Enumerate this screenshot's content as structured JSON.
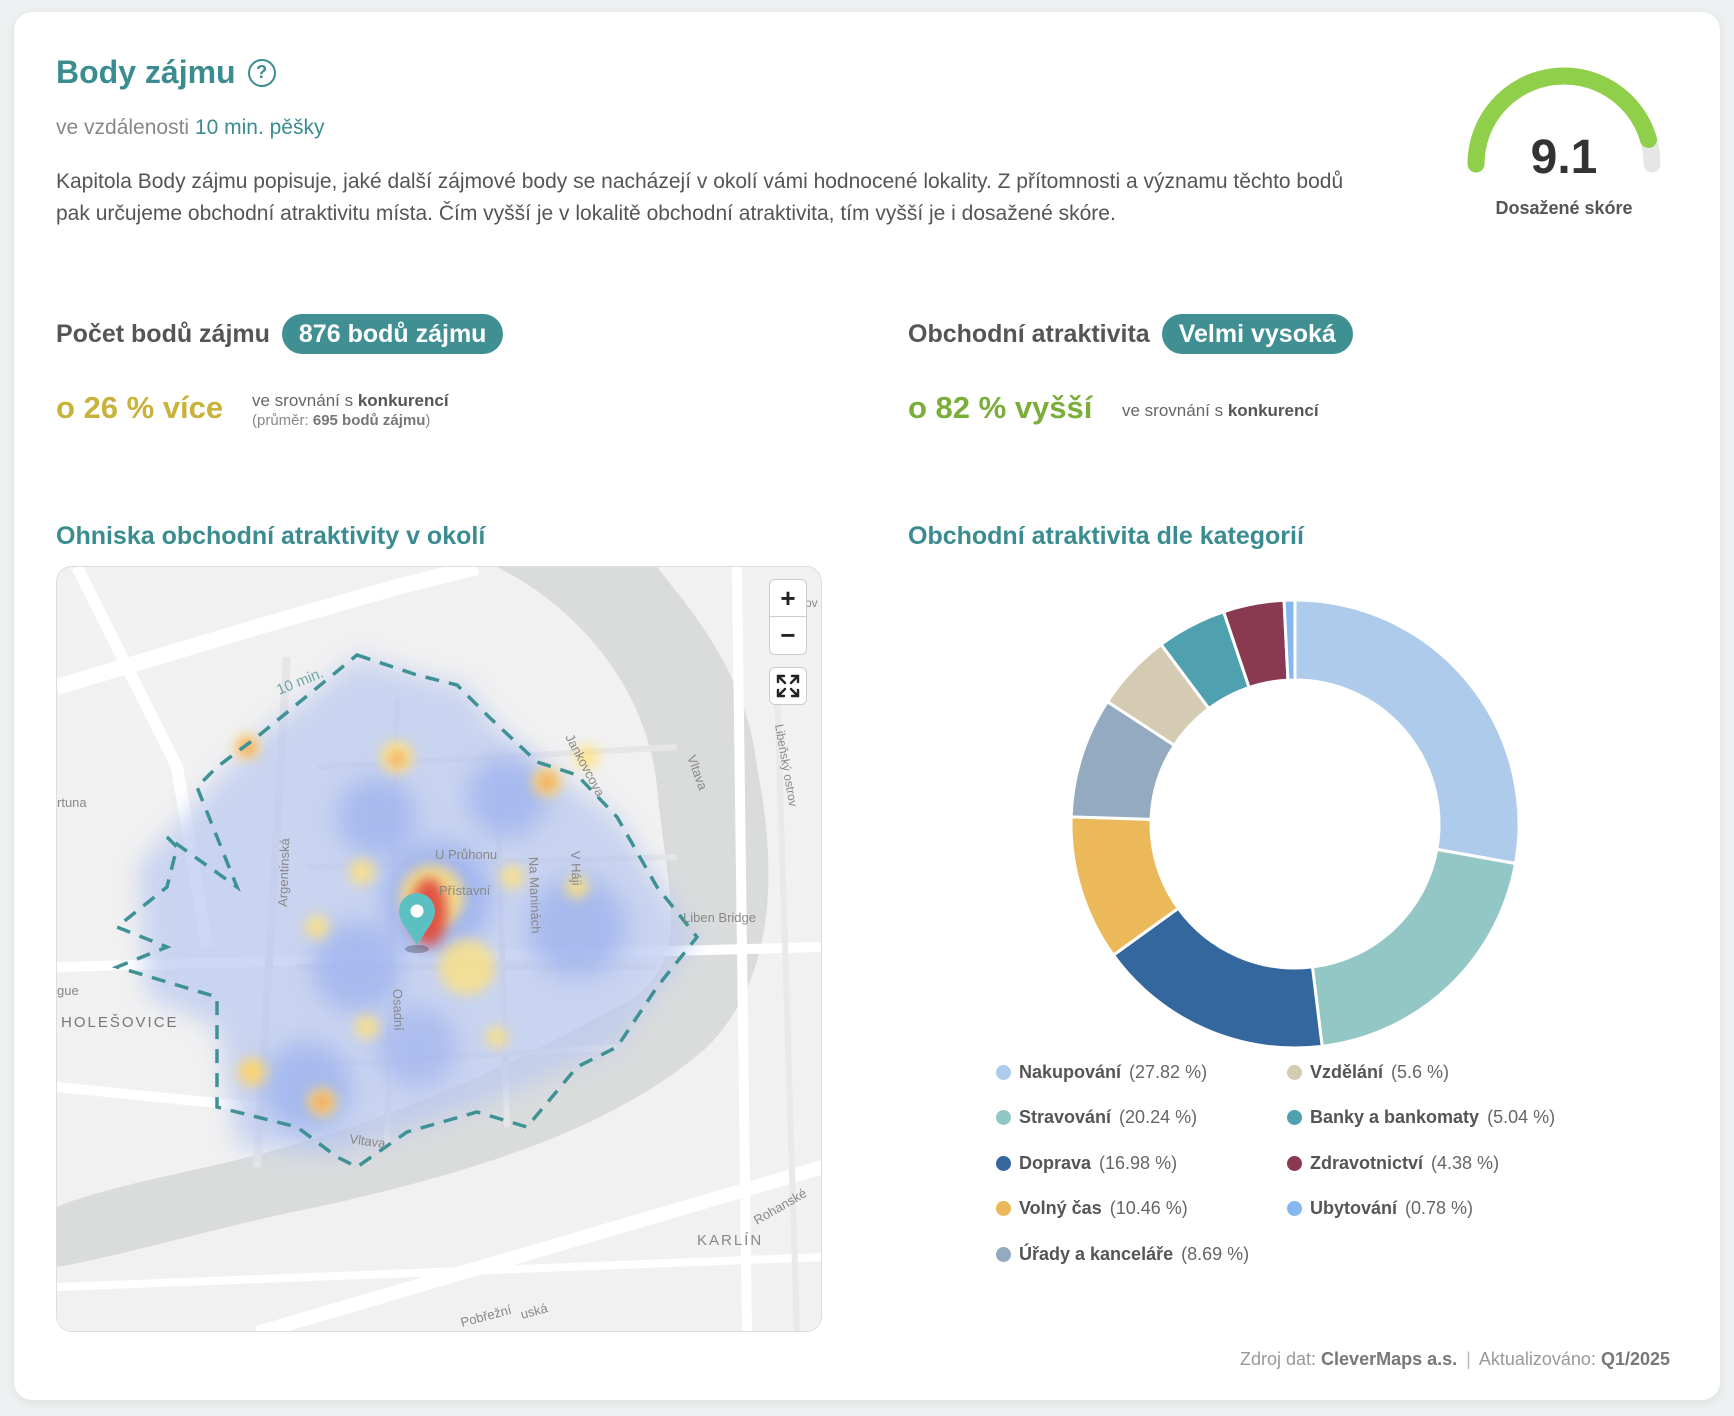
{
  "header": {
    "title": "Body zájmu",
    "subtitle_prefix": "ve vzdálenosti",
    "subtitle_value": "10 min. pěšky",
    "description": "Kapitola Body zájmu popisuje, jaké další zájmové body se nacházejí v okolí vámi hodnocené lokality. Z přítomnosti a významu těchto bodů pak určujeme obchodní atraktivitu místa. Čím vyšší je v lokalitě obchodní atraktivita, tím vyšší je i dosažené skóre."
  },
  "score": {
    "value": "9.1",
    "fraction": 0.91,
    "label": "Dosažené skóre",
    "color_fill": "#8fcf4a",
    "color_track": "#e6e6e6"
  },
  "poi_count": {
    "label": "Počet bodů zájmu",
    "pill": "876 bodů zájmu",
    "compare_big": "o 26 % více",
    "compare_color": "#c8b23a",
    "compare_text": "ve srovnání s",
    "compare_bold": "konkurencí",
    "avg_prefix": "(průměr:",
    "avg_value": "695 bodů zájmu",
    "avg_suffix": ")"
  },
  "attractivity": {
    "label": "Obchodní atraktivita",
    "pill": "Velmi vysoká",
    "compare_big": "o 82 % vyšší",
    "compare_color": "#7aad3a",
    "compare_text": "ve srovnání s",
    "compare_bold": "konkurencí"
  },
  "map_section": {
    "title": "Ohniska obchodní atraktivity v okolí",
    "zoom_in": "+",
    "zoom_out": "−",
    "labels": {
      "isochrone": "10 min.",
      "holesovice": "HOLEŠOVICE",
      "karlin": "KARLÍN",
      "vltava1": "Vltava",
      "vltava2": "Vltava",
      "liben_bridge": "Liben Bridge",
      "libensky_ostrov": "Libeňský ostrov",
      "argentinska": "Argentinská",
      "u_pruhonu": "U Průhonu",
      "na_maninach": "Na Maninách",
      "v_haji": "V Háji",
      "pristavni": "Přístavní",
      "osadni": "Osadní",
      "jankovcova": "Jankovcova",
      "rohanske": "Rohanské",
      "pobrezni": "Pobřežní",
      "tuna": "rtuna",
      "gue": "gue",
      "ov": "ov",
      "uska": "uská"
    }
  },
  "chart_section": {
    "title": "Obchodní atraktivita dle kategorií"
  },
  "chart_data": {
    "type": "pie",
    "donut": true,
    "categories": [
      "Nakupování",
      "Stravování",
      "Doprava",
      "Volný čas",
      "Úřady a kanceláře",
      "Vzdělání",
      "Banky a bankomaty",
      "Zdravotnictví",
      "Ubytování"
    ],
    "values": [
      27.82,
      20.24,
      16.98,
      10.46,
      8.69,
      5.6,
      5.04,
      4.38,
      0.78
    ],
    "value_labels": [
      "(27.82 %)",
      "(20.24 %)",
      "(16.98 %)",
      "(10.46 %)",
      "(8.69 %)",
      "(5.6 %)",
      "(5.04 %)",
      "(4.38 %)",
      "(0.78 %)"
    ],
    "colors": [
      "#aecbec",
      "#93c7c5",
      "#34679e",
      "#ebb85a",
      "#93aac0",
      "#d4cbb2",
      "#50a1b0",
      "#8a3a50",
      "#86b8ef"
    ],
    "legend": "bottom"
  },
  "footer": {
    "source_label": "Zdroj dat:",
    "source_value": "CleverMaps a.s.",
    "separator": "|",
    "updated_label": "Aktualizováno:",
    "updated_value": "Q1/2025"
  }
}
